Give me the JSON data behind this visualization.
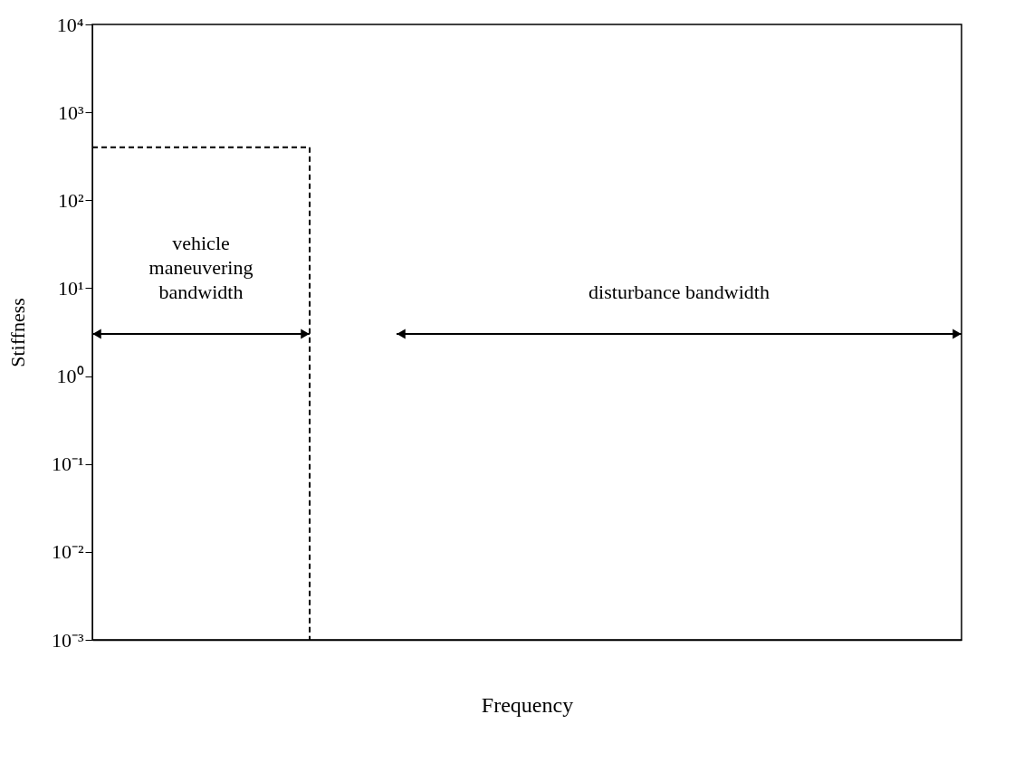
{
  "chart_data": {
    "type": "step",
    "xlabel": "Frequency",
    "ylabel": "Stiffness",
    "log": "y",
    "grid": false,
    "marker": "none",
    "line_style": "dashed",
    "categories": [
      null,
      null,
      null,
      null,
      null
    ],
    "series": [
      {
        "color": "#000000",
        "values": [
          400,
          0.001,
          null,
          null,
          null
        ]
      }
    ],
    "ylim": [
      0.001,
      10000
    ],
    "yticks": [
      {
        "value": 0.001,
        "label": "10⁻³"
      },
      {
        "value": 0.01,
        "label": "10⁻²"
      },
      {
        "value": 0.1,
        "label": "10⁻¹"
      },
      {
        "value": 1,
        "label": "10⁰"
      },
      {
        "value": 10,
        "label": "10¹"
      },
      {
        "value": 100,
        "label": "10²"
      },
      {
        "value": 1000,
        "label": "10³"
      },
      {
        "value": 10000,
        "label": "10⁴"
      }
    ],
    "annotations": [
      "vehicle\nmaneuvering\nbandwidth",
      "disturbance bandwidth"
    ]
  }
}
